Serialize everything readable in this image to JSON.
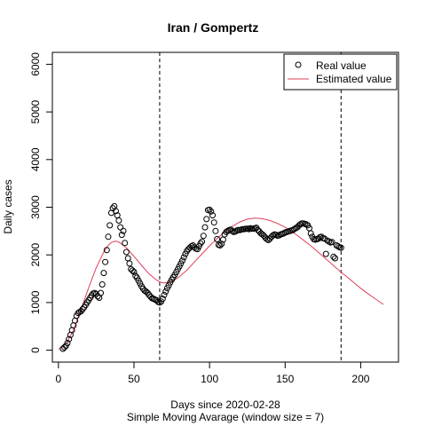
{
  "chart_data": {
    "type": "scatter",
    "title": "Iran / Gompertz",
    "xlabel": "Days since 2020-02-28",
    "subtitle": "Simple Moving Avarage (window size = 7)",
    "ylabel": "Daily cases",
    "xlim": [
      -4,
      225
    ],
    "ylim": [
      -250,
      6250
    ],
    "x_ticks": [
      0,
      50,
      100,
      150,
      200
    ],
    "y_ticks": [
      0,
      1000,
      2000,
      3000,
      4000,
      5000,
      6000
    ],
    "grid": false,
    "legend_position": "top-right",
    "vertical_lines": [
      {
        "x": 67,
        "style": "dashed"
      },
      {
        "x": 187,
        "style": "dashed"
      }
    ],
    "series": [
      {
        "name": "Real value",
        "marker": "open-circle",
        "color": "#000000",
        "points": [
          [
            3,
            30
          ],
          [
            4,
            60
          ],
          [
            5,
            90
          ],
          [
            6,
            150
          ],
          [
            7,
            230
          ],
          [
            8,
            320
          ],
          [
            9,
            420
          ],
          [
            10,
            520
          ],
          [
            11,
            620
          ],
          [
            12,
            720
          ],
          [
            13,
            780
          ],
          [
            14,
            800
          ],
          [
            15,
            820
          ],
          [
            16,
            860
          ],
          [
            17,
            900
          ],
          [
            18,
            950
          ],
          [
            19,
            1000
          ],
          [
            20,
            1050
          ],
          [
            21,
            1100
          ],
          [
            22,
            1150
          ],
          [
            23,
            1190
          ],
          [
            24,
            1200
          ],
          [
            25,
            1180
          ],
          [
            26,
            1130
          ],
          [
            27,
            1100
          ],
          [
            28,
            1200
          ],
          [
            29,
            1380
          ],
          [
            30,
            1620
          ],
          [
            31,
            1850
          ],
          [
            32,
            2100
          ],
          [
            33,
            2380
          ],
          [
            34,
            2620
          ],
          [
            35,
            2880
          ],
          [
            36,
            2980
          ],
          [
            37,
            3020
          ],
          [
            38,
            2920
          ],
          [
            39,
            2830
          ],
          [
            40,
            2720
          ],
          [
            41,
            2580
          ],
          [
            42,
            2420
          ],
          [
            43,
            2500
          ],
          [
            44,
            2250
          ],
          [
            45,
            2060
          ],
          [
            46,
            1930
          ],
          [
            47,
            1820
          ],
          [
            48,
            1700
          ],
          [
            49,
            1670
          ],
          [
            50,
            1640
          ],
          [
            51,
            1560
          ],
          [
            52,
            1520
          ],
          [
            53,
            1460
          ],
          [
            54,
            1400
          ],
          [
            55,
            1340
          ],
          [
            56,
            1290
          ],
          [
            57,
            1250
          ],
          [
            58,
            1230
          ],
          [
            59,
            1200
          ],
          [
            60,
            1160
          ],
          [
            61,
            1120
          ],
          [
            62,
            1090
          ],
          [
            63,
            1080
          ],
          [
            64,
            1060
          ],
          [
            65,
            1050
          ],
          [
            66,
            1010
          ],
          [
            67,
            1000
          ],
          [
            68,
            1020
          ],
          [
            69,
            1080
          ],
          [
            70,
            1160
          ],
          [
            71,
            1230
          ],
          [
            72,
            1300
          ],
          [
            73,
            1360
          ],
          [
            74,
            1420
          ],
          [
            75,
            1480
          ],
          [
            76,
            1530
          ],
          [
            77,
            1580
          ],
          [
            78,
            1640
          ],
          [
            79,
            1700
          ],
          [
            80,
            1760
          ],
          [
            81,
            1820
          ],
          [
            82,
            1880
          ],
          [
            83,
            1950
          ],
          [
            84,
            2020
          ],
          [
            85,
            2080
          ],
          [
            86,
            2120
          ],
          [
            87,
            2150
          ],
          [
            88,
            2180
          ],
          [
            89,
            2200
          ],
          [
            90,
            2160
          ],
          [
            91,
            2130
          ],
          [
            92,
            2120
          ],
          [
            93,
            2180
          ],
          [
            94,
            2240
          ],
          [
            95,
            2280
          ],
          [
            96,
            2400
          ],
          [
            97,
            2580
          ],
          [
            98,
            2750
          ],
          [
            99,
            2940
          ],
          [
            100,
            2950
          ],
          [
            101,
            2910
          ],
          [
            102,
            2830
          ],
          [
            103,
            2680
          ],
          [
            104,
            2500
          ],
          [
            105,
            2330
          ],
          [
            106,
            2210
          ],
          [
            107,
            2200
          ],
          [
            108,
            2230
          ],
          [
            109,
            2320
          ],
          [
            110,
            2430
          ],
          [
            111,
            2480
          ],
          [
            112,
            2500
          ],
          [
            113,
            2520
          ],
          [
            114,
            2530
          ],
          [
            115,
            2500
          ],
          [
            116,
            2480
          ],
          [
            117,
            2490
          ],
          [
            118,
            2510
          ],
          [
            119,
            2520
          ],
          [
            120,
            2520
          ],
          [
            121,
            2530
          ],
          [
            122,
            2540
          ],
          [
            123,
            2540
          ],
          [
            124,
            2550
          ],
          [
            125,
            2550
          ],
          [
            126,
            2540
          ],
          [
            127,
            2560
          ],
          [
            128,
            2550
          ],
          [
            129,
            2550
          ],
          [
            130,
            2560
          ],
          [
            131,
            2570
          ],
          [
            132,
            2520
          ],
          [
            133,
            2490
          ],
          [
            134,
            2450
          ],
          [
            135,
            2430
          ],
          [
            136,
            2400
          ],
          [
            137,
            2360
          ],
          [
            138,
            2330
          ],
          [
            139,
            2310
          ],
          [
            140,
            2340
          ],
          [
            141,
            2380
          ],
          [
            142,
            2410
          ],
          [
            143,
            2430
          ],
          [
            144,
            2420
          ],
          [
            145,
            2400
          ],
          [
            146,
            2410
          ],
          [
            147,
            2430
          ],
          [
            148,
            2440
          ],
          [
            149,
            2450
          ],
          [
            150,
            2470
          ],
          [
            151,
            2480
          ],
          [
            152,
            2490
          ],
          [
            153,
            2500
          ],
          [
            154,
            2510
          ],
          [
            155,
            2520
          ],
          [
            156,
            2540
          ],
          [
            157,
            2560
          ],
          [
            158,
            2580
          ],
          [
            159,
            2610
          ],
          [
            160,
            2640
          ],
          [
            161,
            2660
          ],
          [
            162,
            2660
          ],
          [
            163,
            2650
          ],
          [
            164,
            2640
          ],
          [
            165,
            2620
          ],
          [
            166,
            2560
          ],
          [
            167,
            2450
          ],
          [
            168,
            2380
          ],
          [
            169,
            2330
          ],
          [
            170,
            2320
          ],
          [
            171,
            2330
          ],
          [
            172,
            2340
          ],
          [
            173,
            2370
          ],
          [
            174,
            2380
          ],
          [
            175,
            2350
          ],
          [
            176,
            2340
          ],
          [
            177,
            2020
          ],
          [
            178,
            2300
          ],
          [
            179,
            2280
          ],
          [
            180,
            2260
          ],
          [
            181,
            2270
          ],
          [
            182,
            1960
          ],
          [
            183,
            1930
          ],
          [
            184,
            2200
          ],
          [
            185,
            2180
          ],
          [
            186,
            2160
          ],
          [
            187,
            2150
          ]
        ]
      },
      {
        "name": "Estimated value",
        "color": "#e0405a",
        "points": [
          [
            0,
            20
          ],
          [
            5,
            130
          ],
          [
            10,
            420
          ],
          [
            15,
            860
          ],
          [
            20,
            1310
          ],
          [
            25,
            1730
          ],
          [
            30,
            2060
          ],
          [
            33,
            2200
          ],
          [
            35,
            2260
          ],
          [
            38,
            2290
          ],
          [
            40,
            2270
          ],
          [
            45,
            2150
          ],
          [
            50,
            1970
          ],
          [
            55,
            1780
          ],
          [
            60,
            1600
          ],
          [
            65,
            1470
          ],
          [
            68,
            1420
          ],
          [
            70,
            1410
          ],
          [
            75,
            1440
          ],
          [
            80,
            1540
          ],
          [
            85,
            1680
          ],
          [
            90,
            1850
          ],
          [
            95,
            2020
          ],
          [
            100,
            2190
          ],
          [
            105,
            2340
          ],
          [
            110,
            2480
          ],
          [
            115,
            2600
          ],
          [
            120,
            2690
          ],
          [
            125,
            2750
          ],
          [
            130,
            2770
          ],
          [
            135,
            2760
          ],
          [
            140,
            2720
          ],
          [
            145,
            2660
          ],
          [
            150,
            2580
          ],
          [
            155,
            2480
          ],
          [
            160,
            2360
          ],
          [
            165,
            2240
          ],
          [
            170,
            2110
          ],
          [
            175,
            1970
          ],
          [
            180,
            1830
          ],
          [
            185,
            1690
          ],
          [
            190,
            1560
          ],
          [
            195,
            1430
          ],
          [
            200,
            1300
          ],
          [
            205,
            1180
          ],
          [
            210,
            1070
          ],
          [
            215,
            960
          ]
        ]
      }
    ]
  }
}
